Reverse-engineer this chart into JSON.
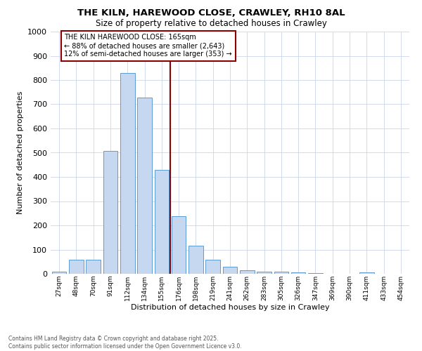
{
  "title": "THE KILN, HAREWOOD CLOSE, CRAWLEY, RH10 8AL",
  "subtitle": "Size of property relative to detached houses in Crawley",
  "xlabel": "Distribution of detached houses by size in Crawley",
  "ylabel": "Number of detached properties",
  "bar_labels": [
    "27sqm",
    "48sqm",
    "70sqm",
    "91sqm",
    "112sqm",
    "134sqm",
    "155sqm",
    "176sqm",
    "198sqm",
    "219sqm",
    "241sqm",
    "262sqm",
    "283sqm",
    "305sqm",
    "326sqm",
    "347sqm",
    "369sqm",
    "390sqm",
    "411sqm",
    "433sqm",
    "454sqm"
  ],
  "bar_values": [
    10,
    58,
    57,
    508,
    828,
    728,
    428,
    238,
    117,
    57,
    30,
    15,
    10,
    10,
    6,
    3,
    0,
    0,
    7,
    0,
    0
  ],
  "bar_color": "#c5d8f0",
  "bar_edge_color": "#5b9bd5",
  "vline_color": "#8b0000",
  "annotation_title": "THE KILN HAREWOOD CLOSE: 165sqm",
  "annotation_line1": "← 88% of detached houses are smaller (2,643)",
  "annotation_line2": "12% of semi-detached houses are larger (353) →",
  "annotation_box_color": "#8b0000",
  "ylim": [
    0,
    1000
  ],
  "yticks": [
    0,
    100,
    200,
    300,
    400,
    500,
    600,
    700,
    800,
    900,
    1000
  ],
  "footer_line1": "Contains HM Land Registry data © Crown copyright and database right 2025.",
  "footer_line2": "Contains public sector information licensed under the Open Government Licence v3.0.",
  "bg_color": "#ffffff",
  "grid_color": "#ccd6e8"
}
